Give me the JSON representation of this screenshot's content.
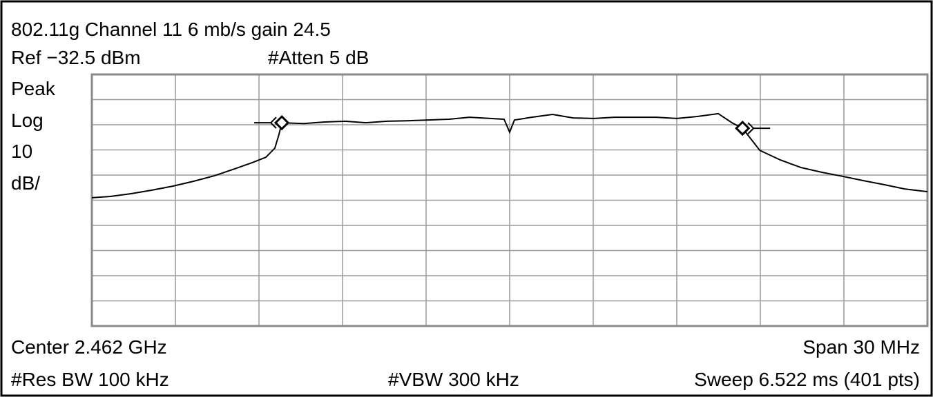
{
  "chart_data": {
    "type": "line",
    "title": "802.11g Channel 11 6 mb/s gain 24.5",
    "labels": {
      "ref": "Ref −32.5 dBm",
      "atten": "#Atten 5 dB",
      "detector": "Peak",
      "scale": "Log",
      "div": "10",
      "unit": "dB/",
      "center": "Center 2.462 GHz",
      "span": "Span 30 MHz",
      "rbw": "#Res BW 100 kHz",
      "vbw": "#VBW 300 kHz",
      "sweep": "Sweep 6.522 ms (401 pts)"
    },
    "x": [
      2447.0,
      2447.67,
      2448.41,
      2449.16,
      2449.9,
      2450.64,
      2451.39,
      2452.13,
      2452.75,
      2453.25,
      2453.57,
      2453.72,
      2453.82,
      2454.61,
      2455.36,
      2456.1,
      2456.84,
      2457.59,
      2458.33,
      2459.07,
      2459.82,
      2460.56,
      2461.31,
      2461.8,
      2462.0,
      2462.17,
      2462.79,
      2463.54,
      2464.28,
      2465.02,
      2465.77,
      2466.51,
      2467.26,
      2468.0,
      2468.74,
      2469.49,
      2469.98,
      2470.36,
      2470.73,
      2470.98,
      2471.72,
      2472.46,
      2473.21,
      2473.95,
      2474.69,
      2475.44,
      2476.18,
      2477.0
    ],
    "series": [
      {
        "color": "#000000",
        "values": [
          -81.5,
          -81.0,
          -79.9,
          -78.5,
          -76.9,
          -75.0,
          -72.8,
          -70.0,
          -67.6,
          -65.4,
          -61.8,
          -56.3,
          -51.7,
          -52.0,
          -51.4,
          -51.1,
          -51.7,
          -51.1,
          -50.9,
          -50.6,
          -50.3,
          -49.5,
          -50.0,
          -50.3,
          -55.5,
          -50.6,
          -49.5,
          -48.4,
          -49.8,
          -50.0,
          -49.5,
          -49.5,
          -49.5,
          -50.0,
          -49.2,
          -48.1,
          -51.7,
          -53.9,
          -59.1,
          -62.7,
          -66.5,
          -69.5,
          -71.4,
          -73.0,
          -74.7,
          -76.3,
          -78.0,
          -79.1
        ]
      }
    ],
    "markers": [
      {
        "x": 2453.82,
        "y": -51.7
      },
      {
        "x": 2470.36,
        "y": -53.9
      }
    ],
    "xlim": [
      2447,
      2477
    ],
    "xticks": [
      2447,
      2450,
      2453,
      2456,
      2459,
      2462,
      2465,
      2468,
      2471,
      2474,
      2477
    ],
    "ylim": [
      -132.5,
      -32.5
    ],
    "yticks": [
      -132.5,
      -122.5,
      -112.5,
      -102.5,
      -92.5,
      -82.5,
      -72.5,
      -62.5,
      -52.5,
      -42.5,
      -32.5
    ],
    "grid": true
  }
}
